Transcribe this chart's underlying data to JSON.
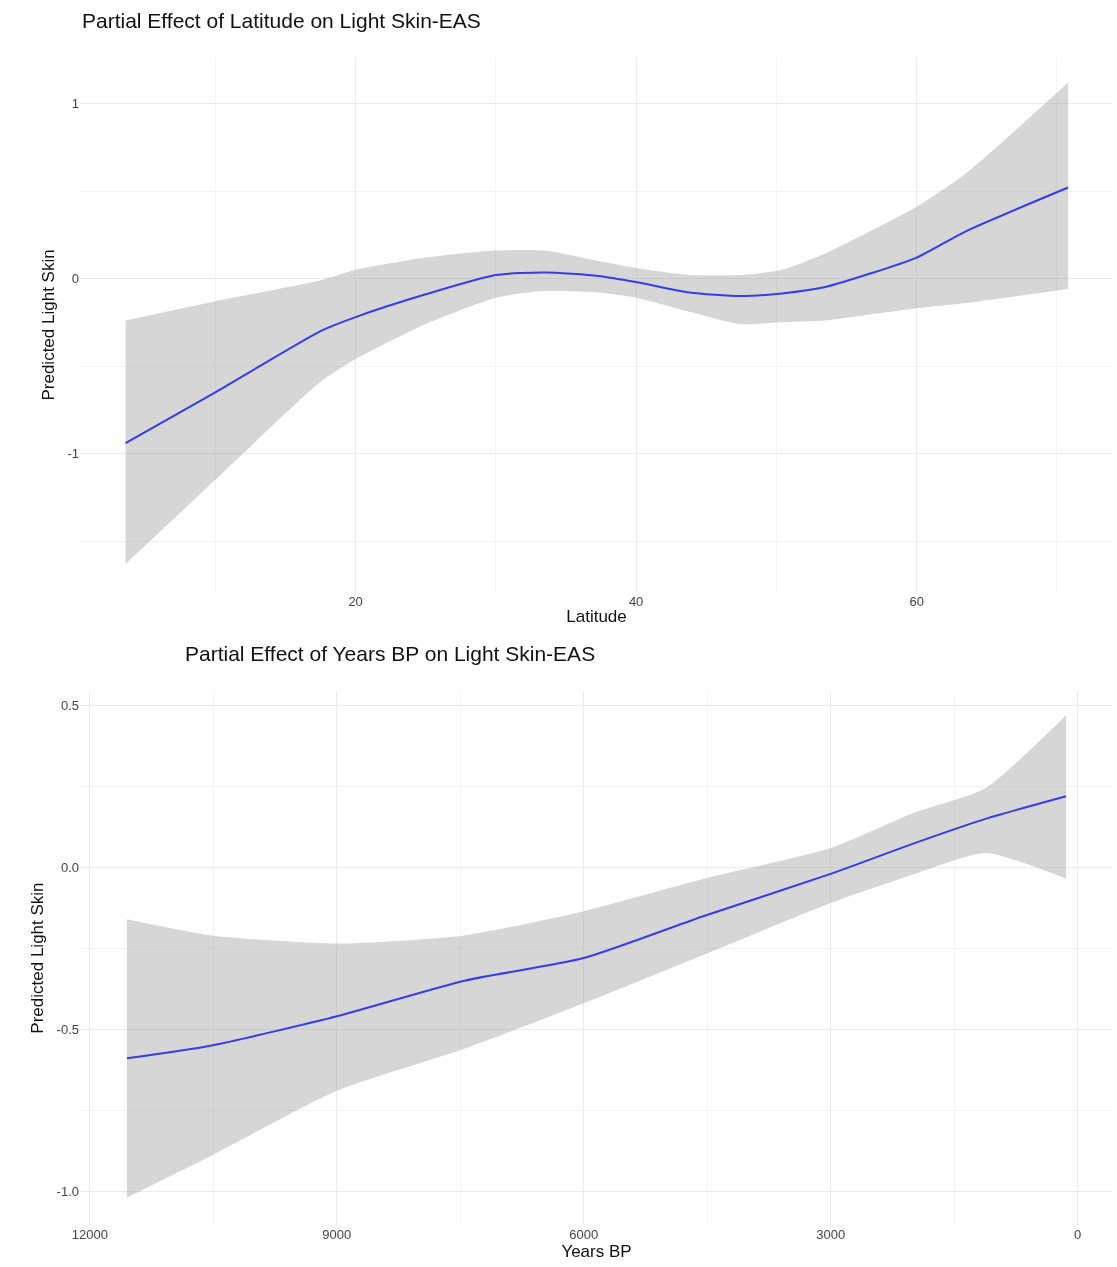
{
  "chart_data": [
    {
      "type": "line",
      "title": "Partial Effect of Latitude on Light Skin-EAS",
      "xlabel": "Latitude",
      "ylabel": "Predicted Light Skin",
      "x": [
        3.6,
        10,
        17.5,
        20,
        25,
        30,
        33.5,
        37.3,
        40,
        43.8,
        47.4,
        50.4,
        53.4,
        60,
        63.5,
        70.8
      ],
      "series": [
        {
          "color": "#3a3ae6",
          "values": [
            -0.94,
            -0.65,
            -0.3,
            -0.22,
            -0.09,
            0.02,
            0.035,
            0.015,
            -0.02,
            -0.08,
            -0.1,
            -0.085,
            -0.05,
            0.12,
            0.27,
            0.52
          ],
          "upper": [
            -0.24,
            -0.13,
            -0.01,
            0.05,
            0.12,
            0.16,
            0.16,
            0.1,
            0.06,
            0.02,
            0.02,
            0.05,
            0.14,
            0.41,
            0.6,
            1.12
          ],
          "lower": [
            -1.63,
            -1.15,
            -0.59,
            -0.46,
            -0.26,
            -0.11,
            -0.07,
            -0.08,
            -0.11,
            -0.19,
            -0.26,
            -0.25,
            -0.24,
            -0.17,
            -0.14,
            -0.06
          ]
        }
      ],
      "xlim": [
        0.35,
        74
      ],
      "xticks": [
        20,
        40,
        60
      ],
      "ylim": [
        -1.79,
        1.26
      ],
      "yticks": [
        -1,
        0,
        1
      ],
      "grid": true
    },
    {
      "type": "line",
      "title": "Partial Effect of Years BP on Light Skin-EAS",
      "xlabel": "Years BP",
      "ylabel": "Predicted Light Skin",
      "x": [
        11550,
        10520,
        9000,
        7450,
        6000,
        4540,
        3000,
        1980,
        1120,
        140
      ],
      "series": [
        {
          "color": "#3a3ae6",
          "values": [
            -0.59,
            -0.55,
            -0.46,
            -0.35,
            -0.28,
            -0.15,
            -0.02,
            0.075,
            0.15,
            0.22
          ],
          "upper": [
            -0.16,
            -0.21,
            -0.235,
            -0.21,
            -0.135,
            -0.035,
            0.06,
            0.17,
            0.245,
            0.47
          ],
          "lower": [
            -1.02,
            -0.89,
            -0.69,
            -0.56,
            -0.42,
            -0.27,
            -0.11,
            -0.02,
            0.045,
            -0.035
          ]
        }
      ],
      "xlim": [
        12120,
        -430
      ],
      "xticks": [
        12000,
        9000,
        6000,
        3000,
        0
      ],
      "ylim": [
        -1.105,
        0.545
      ],
      "yticks": [
        {
          "value": -1,
          "label": "-1.0"
        },
        {
          "value": -0.5,
          "label": "-0.5"
        },
        {
          "value": 0,
          "label": "0.0"
        },
        0.5
      ],
      "grid": true
    }
  ]
}
